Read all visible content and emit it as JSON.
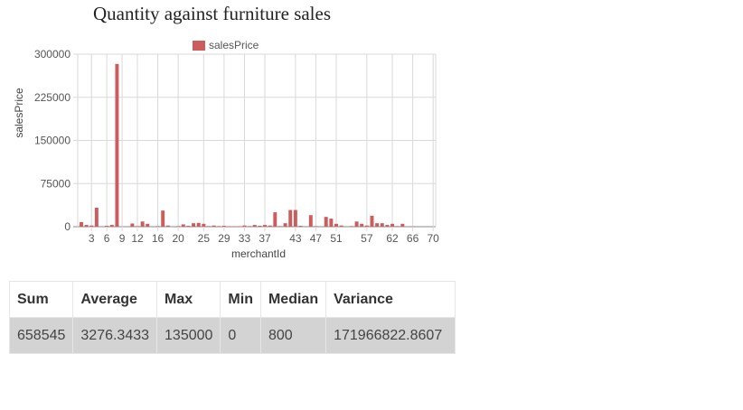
{
  "chart_data": {
    "type": "bar",
    "title": "Quantity against furniture sales",
    "xlabel": "merchantId",
    "ylabel": "salesPrice",
    "ylim": [
      0,
      300000
    ],
    "yticks": [
      "0",
      "75000",
      "150000",
      "225000",
      "300000"
    ],
    "xticks": [
      "3",
      "6",
      "9",
      "12",
      "16",
      "20",
      "25",
      "29",
      "33",
      "37",
      "43",
      "47",
      "51",
      "57",
      "62",
      "66",
      "70"
    ],
    "legend": "top-center",
    "grid": true,
    "color": "#cd5c5c",
    "series": [
      {
        "name": "salesPrice",
        "x": [
          1,
          2,
          3,
          4,
          5,
          6,
          7,
          8,
          9,
          10,
          11,
          12,
          13,
          14,
          15,
          16,
          17,
          18,
          19,
          20,
          21,
          22,
          23,
          24,
          25,
          26,
          27,
          28,
          29,
          30,
          31,
          32,
          33,
          34,
          35,
          36,
          37,
          38,
          39,
          40,
          41,
          42,
          43,
          44,
          45,
          46,
          47,
          48,
          49,
          50,
          51,
          52,
          53,
          54,
          55,
          56,
          57,
          58,
          59,
          60,
          61,
          62,
          63,
          64,
          65,
          66,
          67,
          68,
          69,
          70
        ],
        "values": [
          8000,
          3000,
          2000,
          33000,
          0,
          1500,
          3000,
          283000,
          0,
          0,
          5500,
          1000,
          9000,
          5000,
          0,
          1000,
          28000,
          2000,
          0,
          1000,
          4000,
          1500,
          6000,
          6500,
          5000,
          1000,
          2000,
          1000,
          1500,
          500,
          500,
          500,
          2000,
          1000,
          3000,
          1500,
          3000,
          2000,
          25000,
          1000,
          6000,
          29000,
          29000,
          1500,
          0,
          20000,
          1000,
          0,
          17000,
          14000,
          5000,
          2000,
          0,
          1000,
          9000,
          5000,
          2000,
          19000,
          6000,
          6000,
          3000,
          5000,
          1000,
          5000,
          0,
          500,
          0,
          0,
          0,
          0
        ]
      }
    ]
  },
  "stats": {
    "headers": [
      "Sum",
      "Average",
      "Max",
      "Min",
      "Median",
      "Variance"
    ],
    "values": [
      "658545",
      "3276.3433",
      "135000",
      "0",
      "800",
      "171966822.8607"
    ]
  }
}
